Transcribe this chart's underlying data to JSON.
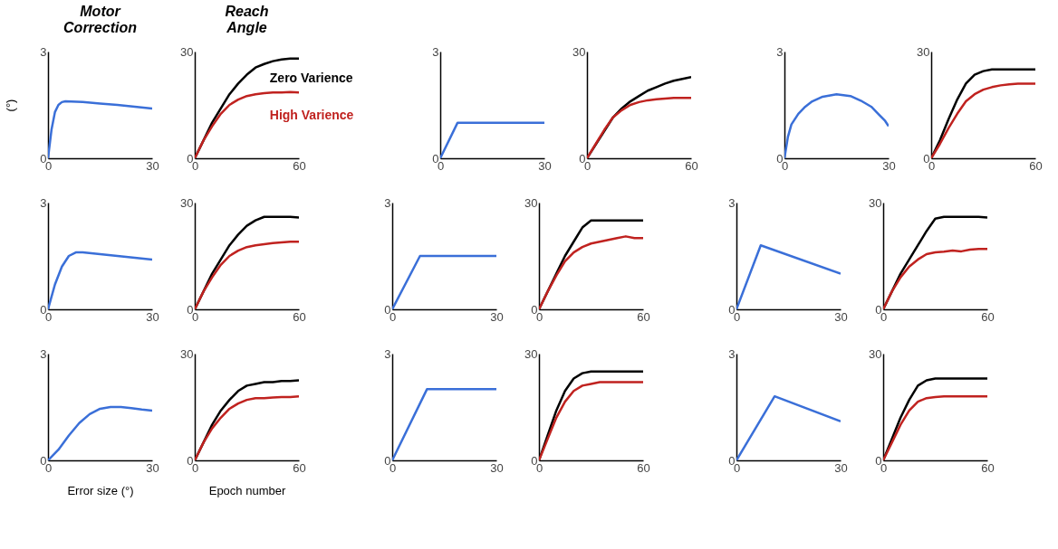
{
  "chart_data": [
    {
      "type": "line",
      "title": "Motor Correction",
      "ylabel": "(°)",
      "xlim": [
        0,
        30
      ],
      "xticks": [
        0,
        30
      ],
      "ylim": [
        0,
        3
      ],
      "yticks": [
        0,
        3
      ],
      "x": [
        0,
        1,
        2,
        3,
        4,
        5,
        10,
        15,
        20,
        25,
        30
      ],
      "series": [
        {
          "color": "#3a6fd8",
          "values": [
            0,
            0.8,
            1.3,
            1.5,
            1.58,
            1.6,
            1.58,
            1.54,
            1.5,
            1.45,
            1.4
          ]
        }
      ]
    },
    {
      "type": "line",
      "title": "Reach Angle",
      "legend": "top right",
      "xlim": [
        0,
        60
      ],
      "xticks": [
        0,
        60
      ],
      "ylim": [
        0,
        30
      ],
      "yticks": [
        0,
        30
      ],
      "x": [
        0,
        5,
        10,
        15,
        20,
        25,
        30,
        35,
        40,
        45,
        50,
        55,
        60
      ],
      "series": [
        {
          "name": "Zero Varience",
          "color": "#000000",
          "values": [
            0,
            5,
            10,
            14,
            18,
            21,
            23.5,
            25.5,
            26.5,
            27.3,
            27.8,
            28,
            28
          ]
        },
        {
          "name": "High Varience",
          "color": "#c0221f",
          "values": [
            0,
            5,
            9,
            12.5,
            15,
            16.5,
            17.5,
            18,
            18.3,
            18.5,
            18.5,
            18.6,
            18.5
          ]
        }
      ]
    },
    {
      "type": "line",
      "xlim": [
        0,
        30
      ],
      "xticks": [
        0,
        30
      ],
      "ylim": [
        0,
        3
      ],
      "yticks": [
        0,
        3
      ],
      "x": [
        0,
        5,
        30
      ],
      "series": [
        {
          "color": "#3a6fd8",
          "values": [
            0,
            1,
            1
          ]
        }
      ]
    },
    {
      "type": "line",
      "xlim": [
        0,
        60
      ],
      "xticks": [
        0,
        60
      ],
      "ylim": [
        0,
        30
      ],
      "yticks": [
        0,
        30
      ],
      "x": [
        0,
        5,
        10,
        15,
        20,
        25,
        30,
        35,
        40,
        45,
        50,
        55,
        60
      ],
      "series": [
        {
          "color": "#000000",
          "x": [
            0,
            15,
            20,
            25,
            30,
            35,
            40,
            45,
            50,
            55,
            60
          ],
          "values": [
            0,
            11.5,
            14,
            16,
            17.5,
            19,
            20,
            21,
            21.8,
            22.3,
            22.8
          ]
        },
        {
          "color": "#c0221f",
          "values": [
            0,
            4,
            8,
            11.5,
            13.5,
            15,
            15.8,
            16.3,
            16.6,
            16.8,
            17,
            17,
            17
          ]
        }
      ]
    },
    {
      "type": "line",
      "xlim": [
        0,
        30
      ],
      "xticks": [
        0,
        30
      ],
      "ylim": [
        0,
        3
      ],
      "yticks": [
        0,
        3
      ],
      "x": [
        0,
        1,
        2,
        4,
        6,
        8,
        11,
        15,
        19,
        22,
        25,
        27,
        29,
        30
      ],
      "series": [
        {
          "color": "#3a6fd8",
          "values": [
            0,
            0.6,
            0.95,
            1.25,
            1.45,
            1.6,
            1.73,
            1.8,
            1.75,
            1.62,
            1.45,
            1.25,
            1.05,
            0.9
          ]
        }
      ]
    },
    {
      "type": "line",
      "xlim": [
        0,
        60
      ],
      "xticks": [
        0,
        60
      ],
      "ylim": [
        0,
        30
      ],
      "yticks": [
        0,
        30
      ],
      "x": [
        0,
        5,
        10,
        15,
        20,
        25,
        30,
        35,
        40,
        45,
        50,
        55,
        60
      ],
      "series": [
        {
          "color": "#000000",
          "values": [
            0,
            5,
            11,
            16.5,
            21,
            23.5,
            24.5,
            25,
            25,
            25,
            25,
            25,
            25
          ]
        },
        {
          "color": "#c0221f",
          "values": [
            0,
            4,
            8.5,
            12.5,
            16,
            18,
            19.3,
            20,
            20.5,
            20.8,
            21,
            21,
            21
          ]
        }
      ]
    },
    {
      "type": "line",
      "xlim": [
        0,
        30
      ],
      "xticks": [
        0,
        30
      ],
      "ylim": [
        0,
        3
      ],
      "yticks": [
        0,
        3
      ],
      "x": [
        0,
        2,
        4,
        6,
        8,
        10,
        15,
        20,
        25,
        30
      ],
      "series": [
        {
          "color": "#3a6fd8",
          "values": [
            0,
            0.7,
            1.2,
            1.5,
            1.6,
            1.6,
            1.55,
            1.5,
            1.45,
            1.4
          ]
        }
      ]
    },
    {
      "type": "line",
      "xlim": [
        0,
        60
      ],
      "xticks": [
        0,
        60
      ],
      "ylim": [
        0,
        30
      ],
      "yticks": [
        0,
        30
      ],
      "x": [
        0,
        5,
        10,
        15,
        20,
        25,
        30,
        35,
        40,
        45,
        50,
        55,
        60
      ],
      "series": [
        {
          "color": "#000000",
          "values": [
            0,
            5,
            10,
            14,
            18,
            21,
            23.5,
            25,
            26,
            26,
            26,
            26,
            25.8
          ]
        },
        {
          "color": "#c0221f",
          "values": [
            0,
            5,
            9,
            12.5,
            15,
            16.5,
            17.5,
            18,
            18.3,
            18.6,
            18.8,
            19,
            19
          ]
        }
      ]
    },
    {
      "type": "line",
      "xlim": [
        0,
        30
      ],
      "xticks": [
        0,
        30
      ],
      "ylim": [
        0,
        3
      ],
      "yticks": [
        0,
        3
      ],
      "x": [
        0,
        8,
        30
      ],
      "series": [
        {
          "color": "#3a6fd8",
          "values": [
            0,
            1.5,
            1.5
          ]
        }
      ]
    },
    {
      "type": "line",
      "xlim": [
        0,
        60
      ],
      "xticks": [
        0,
        60
      ],
      "ylim": [
        0,
        30
      ],
      "yticks": [
        0,
        30
      ],
      "x": [
        0,
        5,
        10,
        15,
        20,
        25,
        30,
        35,
        40,
        45,
        50,
        55,
        60
      ],
      "series": [
        {
          "color": "#000000",
          "x": [
            0,
            10,
            15,
            20,
            25,
            30,
            35,
            40,
            45,
            50,
            55,
            60
          ],
          "values": [
            0,
            10,
            15,
            19,
            23,
            25,
            25,
            25,
            25,
            25,
            25,
            25
          ]
        },
        {
          "color": "#c0221f",
          "values": [
            0,
            5,
            9.5,
            13.5,
            16,
            17.5,
            18.5,
            19,
            19.5,
            20,
            20.5,
            20,
            20
          ]
        }
      ]
    },
    {
      "type": "line",
      "xlim": [
        0,
        30
      ],
      "xticks": [
        0,
        30
      ],
      "ylim": [
        0,
        3
      ],
      "yticks": [
        0,
        3
      ],
      "x": [
        0,
        7,
        30
      ],
      "series": [
        {
          "color": "#3a6fd8",
          "values": [
            0,
            1.8,
            1
          ]
        }
      ]
    },
    {
      "type": "line",
      "xlim": [
        0,
        60
      ],
      "xticks": [
        0,
        60
      ],
      "ylim": [
        0,
        30
      ],
      "yticks": [
        0,
        30
      ],
      "x": [
        0,
        5,
        10,
        15,
        20,
        25,
        30,
        35,
        40,
        45,
        50,
        55,
        60
      ],
      "series": [
        {
          "color": "#000000",
          "values": [
            0,
            5,
            10,
            14,
            18,
            22,
            25.5,
            26,
            26,
            26,
            26,
            26,
            25.8
          ]
        },
        {
          "color": "#c0221f",
          "values": [
            0,
            5,
            9,
            12,
            14,
            15.5,
            16,
            16.2,
            16.5,
            16.3,
            16.8,
            17,
            17
          ]
        }
      ]
    },
    {
      "type": "line",
      "xlabel": "Error size (°)",
      "xlim": [
        0,
        30
      ],
      "xticks": [
        0,
        30
      ],
      "ylim": [
        0,
        3
      ],
      "yticks": [
        0,
        3
      ],
      "x": [
        0,
        3,
        6,
        9,
        12,
        15,
        18,
        21,
        24,
        27,
        30
      ],
      "series": [
        {
          "color": "#3a6fd8",
          "values": [
            0,
            0.3,
            0.7,
            1.05,
            1.3,
            1.45,
            1.5,
            1.5,
            1.47,
            1.43,
            1.4
          ]
        }
      ]
    },
    {
      "type": "line",
      "xlabel": "Epoch number",
      "xlim": [
        0,
        60
      ],
      "xticks": [
        0,
        60
      ],
      "ylim": [
        0,
        30
      ],
      "yticks": [
        0,
        30
      ],
      "x": [
        0,
        5,
        10,
        15,
        20,
        25,
        30,
        35,
        40,
        45,
        50,
        55,
        60
      ],
      "series": [
        {
          "color": "#000000",
          "values": [
            0,
            5,
            10,
            14,
            17,
            19.5,
            21,
            21.5,
            22,
            22,
            22.3,
            22.3,
            22.5
          ]
        },
        {
          "color": "#c0221f",
          "values": [
            0,
            5,
            9,
            12,
            14.5,
            16,
            17,
            17.5,
            17.5,
            17.7,
            17.8,
            17.8,
            18
          ]
        }
      ]
    },
    {
      "type": "line",
      "xlim": [
        0,
        30
      ],
      "xticks": [
        0,
        30
      ],
      "ylim": [
        0,
        3
      ],
      "yticks": [
        0,
        3
      ],
      "x": [
        0,
        10,
        30
      ],
      "series": [
        {
          "color": "#3a6fd8",
          "values": [
            0,
            2,
            2
          ]
        }
      ]
    },
    {
      "type": "line",
      "xlim": [
        0,
        60
      ],
      "xticks": [
        0,
        60
      ],
      "ylim": [
        0,
        30
      ],
      "yticks": [
        0,
        30
      ],
      "x": [
        0,
        5,
        10,
        15,
        20,
        25,
        30,
        35,
        40,
        45,
        50,
        55,
        60
      ],
      "series": [
        {
          "color": "#000000",
          "values": [
            0,
            7,
            14,
            19.5,
            23,
            24.5,
            25,
            25,
            25,
            25,
            25,
            25,
            25
          ]
        },
        {
          "color": "#c0221f",
          "values": [
            0,
            6,
            12,
            16.5,
            19.5,
            21,
            21.5,
            22,
            22,
            22,
            22,
            22,
            22
          ]
        }
      ]
    },
    {
      "type": "line",
      "xlim": [
        0,
        30
      ],
      "xticks": [
        0,
        30
      ],
      "ylim": [
        0,
        3
      ],
      "yticks": [
        0,
        3
      ],
      "x": [
        0,
        11,
        30
      ],
      "series": [
        {
          "color": "#3a6fd8",
          "values": [
            0,
            1.8,
            1.1
          ]
        }
      ]
    },
    {
      "type": "line",
      "xlim": [
        0,
        60
      ],
      "xticks": [
        0,
        60
      ],
      "ylim": [
        0,
        30
      ],
      "yticks": [
        0,
        30
      ],
      "x": [
        0,
        5,
        10,
        15,
        20,
        25,
        30,
        35,
        40,
        45,
        50,
        55,
        60
      ],
      "series": [
        {
          "color": "#000000",
          "values": [
            0,
            6,
            12,
            17,
            21,
            22.5,
            23,
            23,
            23,
            23,
            23,
            23,
            23
          ]
        },
        {
          "color": "#c0221f",
          "values": [
            0,
            5,
            10,
            14,
            16.5,
            17.5,
            17.8,
            18,
            18,
            18,
            18,
            18,
            18
          ]
        }
      ]
    }
  ]
}
